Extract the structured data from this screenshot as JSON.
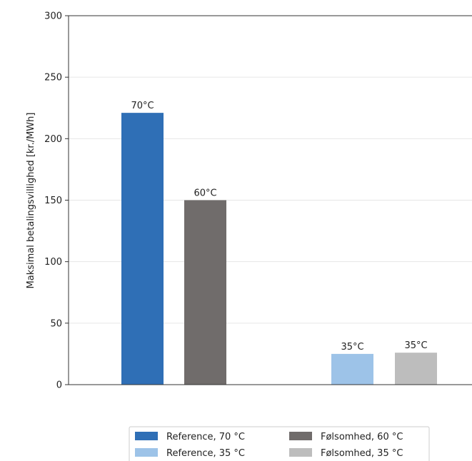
{
  "chart_data": {
    "type": "bar",
    "ylabel": "Maksimal betalingsvillighed [kr./MWh]",
    "ylim": [
      0,
      300
    ],
    "yticks": [
      0,
      50,
      100,
      150,
      200,
      250,
      300
    ],
    "grid": "horizontal",
    "legend_position": "bottom",
    "bars": [
      {
        "series": "Reference, 70 °C",
        "value": 221,
        "label": "70°C",
        "color": "#2f6fb6"
      },
      {
        "series": "Følsomhed, 60 °C",
        "value": 150,
        "label": "60°C",
        "color": "#706c6b"
      },
      {
        "series": "Reference, 35 °C",
        "value": 25,
        "label": "35°C",
        "color": "#9dc3e8"
      },
      {
        "series": "Følsomhed, 35 °C",
        "value": 26,
        "label": "35°C",
        "color": "#bdbdbd"
      }
    ],
    "legend": [
      {
        "name": "Reference, 70 °C",
        "color": "#2f6fb6"
      },
      {
        "name": "Følsomhed, 60 °C",
        "color": "#706c6b"
      },
      {
        "name": "Reference, 35 °C",
        "color": "#9dc3e8"
      },
      {
        "name": "Følsomhed, 35 °C",
        "color": "#bdbdbd"
      }
    ]
  }
}
